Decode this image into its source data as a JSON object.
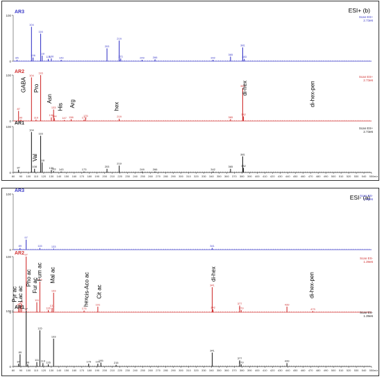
{
  "colors": {
    "AR3": "#3a3ac8",
    "AR2": "#d03030",
    "AR1": "#222222",
    "axis": "#444444",
    "grid": "#999999"
  },
  "chart_data": [
    {
      "type": "line",
      "title": "ESI+ (b)",
      "xlim": [
        80,
        550
      ],
      "x_ticks": [
        80,
        90,
        100,
        110,
        120,
        130,
        140,
        150,
        160,
        170,
        180,
        190,
        200,
        210,
        220,
        230,
        240,
        250,
        260,
        270,
        280,
        290,
        300,
        310,
        320,
        330,
        340,
        350,
        360,
        370,
        380,
        390,
        400,
        410,
        420,
        430,
        440,
        450,
        460,
        470,
        480,
        490,
        500,
        510,
        520,
        530,
        540,
        550
      ],
      "x_unit": "m/z",
      "series": [
        {
          "name": "AR3",
          "scan": "Scan ES+",
          "intensity": "2.73e6",
          "y_ticks": [
            0,
            100
          ],
          "peaks": [
            {
              "mz": 85,
              "h": 3,
              "label": "85"
            },
            {
              "mz": 104,
              "h": 75,
              "label": "104"
            },
            {
              "mz": 106,
              "h": 8,
              "label": "106"
            },
            {
              "mz": 116,
              "h": 60,
              "label": "116"
            },
            {
              "mz": 118,
              "h": 12,
              "label": "118"
            },
            {
              "mz": 126,
              "h": 5,
              "label": "126"
            },
            {
              "mz": 130,
              "h": 6,
              "label": "130"
            },
            {
              "mz": 143,
              "h": 3,
              "label": "143"
            },
            {
              "mz": 203,
              "h": 28,
              "label": "203"
            },
            {
              "mz": 219,
              "h": 45,
              "label": "219"
            },
            {
              "mz": 221,
              "h": 6,
              "label": "221"
            },
            {
              "mz": 249,
              "h": 3,
              "label": "249"
            },
            {
              "mz": 266,
              "h": 4,
              "label": "266"
            },
            {
              "mz": 342,
              "h": 3,
              "label": "342"
            },
            {
              "mz": 365,
              "h": 10,
              "label": "365"
            },
            {
              "mz": 381,
              "h": 30,
              "label": "381"
            },
            {
              "mz": 383,
              "h": 5,
              "label": "383"
            }
          ]
        },
        {
          "name": "AR2",
          "scan": "Scan ES+",
          "intensity": "2.73e6",
          "y_ticks": [
            0,
            100
          ],
          "annotations": [
            "GABA",
            "Pro",
            "Asn",
            "His",
            "Arg",
            "hex",
            "di-hex",
            "di-hex-pen"
          ],
          "peaks": [
            {
              "mz": 87,
              "h": 22,
              "label": "87"
            },
            {
              "mz": 90,
              "h": 3,
              "label": "90"
            },
            {
              "mz": 104,
              "h": 95,
              "label": "104"
            },
            {
              "mz": 110,
              "h": 3,
              "label": "110"
            },
            {
              "mz": 116,
              "h": 100,
              "label": "116"
            },
            {
              "mz": 130,
              "h": 8,
              "label": "130"
            },
            {
              "mz": 133,
              "h": 25,
              "label": "133"
            },
            {
              "mz": 134,
              "h": 6,
              "label": "134"
            },
            {
              "mz": 147,
              "h": 2,
              "label": "147"
            },
            {
              "mz": 156,
              "h": 4,
              "label": "156"
            },
            {
              "mz": 173,
              "h": 3,
              "label": "173"
            },
            {
              "mz": 175,
              "h": 7,
              "label": "175"
            },
            {
              "mz": 219,
              "h": 5,
              "label": "219"
            },
            {
              "mz": 365,
              "h": 4,
              "label": "365"
            },
            {
              "mz": 381,
              "h": 72,
              "label": "381"
            },
            {
              "mz": 382,
              "h": 10,
              "label": "382"
            }
          ]
        },
        {
          "name": "AR1",
          "scan": "Scan ES+",
          "intensity": "2.73e6",
          "y_ticks": [
            0,
            100
          ],
          "annotations": [
            "Val"
          ],
          "peaks": [
            {
              "mz": 87,
              "h": 6,
              "label": "87"
            },
            {
              "mz": 104,
              "h": 88,
              "label": "104"
            },
            {
              "mz": 108,
              "h": 8,
              "label": "108"
            },
            {
              "mz": 116,
              "h": 80,
              "label": "116"
            },
            {
              "mz": 118,
              "h": 22,
              "label": "118"
            },
            {
              "mz": 130,
              "h": 5,
              "label": "130"
            },
            {
              "mz": 133,
              "h": 3,
              "label": "133"
            },
            {
              "mz": 143,
              "h": 2,
              "label": "143"
            },
            {
              "mz": 173,
              "h": 2,
              "label": "173"
            },
            {
              "mz": 203,
              "h": 8,
              "label": "203"
            },
            {
              "mz": 219,
              "h": 15,
              "label": "219"
            },
            {
              "mz": 249,
              "h": 2,
              "label": "249"
            },
            {
              "mz": 266,
              "h": 2,
              "label": "266"
            },
            {
              "mz": 342,
              "h": 2,
              "label": "342"
            },
            {
              "mz": 365,
              "h": 8,
              "label": "365"
            },
            {
              "mz": 381,
              "h": 35,
              "label": "381"
            },
            {
              "mz": 382,
              "h": 10,
              "label": "382"
            }
          ]
        }
      ]
    },
    {
      "type": "line",
      "title": "ESI- (a)",
      "xlim": [
        80,
        550
      ],
      "x_ticks": [
        80,
        90,
        100,
        110,
        120,
        130,
        140,
        150,
        160,
        170,
        180,
        190,
        200,
        210,
        220,
        230,
        240,
        250,
        260,
        270,
        280,
        290,
        300,
        310,
        320,
        330,
        340,
        350,
        360,
        370,
        380,
        390,
        400,
        410,
        420,
        430,
        440,
        450,
        460,
        470,
        480,
        490,
        500,
        510,
        520,
        530,
        540,
        550
      ],
      "x_unit": "m/z",
      "series": [
        {
          "name": "AR3",
          "scan": "Scan ES-",
          "intensity": "1.39e6",
          "y_ticks": [
            0,
            100
          ],
          "peaks": [
            {
              "mz": 89,
              "h": 3,
              "label": "89"
            },
            {
              "mz": 97,
              "h": 18,
              "label": "97"
            },
            {
              "mz": 115,
              "h": 3,
              "label": "115"
            },
            {
              "mz": 133,
              "h": 2,
              "label": "133"
            },
            {
              "mz": 341,
              "h": 3,
              "label": "341"
            }
          ]
        },
        {
          "name": "AR2",
          "scan": "Scan ES-",
          "intensity": "1.39e6",
          "y_ticks": [
            0,
            100
          ],
          "annotations": [
            "Pyr ac",
            "Lac ac",
            "Pho ac",
            "Fur ac",
            "Fum ac",
            "Mal ac",
            "cis-Aco ac",
            "hex",
            "Cit ac",
            "di-hex",
            "di-hex-pen"
          ],
          "peaks": [
            {
              "mz": 87,
              "h": 10,
              "label": "87"
            },
            {
              "mz": 89,
              "h": 12,
              "label": "89"
            },
            {
              "mz": 91,
              "h": 15,
              "label": "91"
            },
            {
              "mz": 97,
              "h": 100,
              "label": "97"
            },
            {
              "mz": 111,
              "h": 18,
              "label": "111"
            },
            {
              "mz": 115,
              "h": 55,
              "label": "115"
            },
            {
              "mz": 126,
              "h": 4,
              "label": "126"
            },
            {
              "mz": 131,
              "h": 8,
              "label": "131"
            },
            {
              "mz": 133,
              "h": 35,
              "label": "133"
            },
            {
              "mz": 173,
              "h": 3,
              "label": "173"
            },
            {
              "mz": 191,
              "h": 10,
              "label": "191"
            },
            {
              "mz": 341,
              "h": 45,
              "label": "341"
            },
            {
              "mz": 342,
              "h": 5,
              "label": "342"
            },
            {
              "mz": 377,
              "h": 12,
              "label": "377"
            },
            {
              "mz": 379,
              "h": 4,
              "label": "379"
            },
            {
              "mz": 439,
              "h": 10,
              "label": "439"
            },
            {
              "mz": 473,
              "h": 2,
              "label": "473"
            }
          ]
        },
        {
          "name": "AR1",
          "scan": "Scan ES-",
          "intensity": "1.39e6",
          "y_ticks": [
            0,
            100
          ],
          "peaks": [
            {
              "mz": 87,
              "h": 5,
              "label": "87"
            },
            {
              "mz": 89,
              "h": 22,
              "label": "89"
            },
            {
              "mz": 97,
              "h": 100,
              "label": "97"
            },
            {
              "mz": 99,
              "h": 4,
              "label": "99"
            },
            {
              "mz": 111,
              "h": 8,
              "label": "111"
            },
            {
              "mz": 115,
              "h": 65,
              "label": "115"
            },
            {
              "mz": 119,
              "h": 6,
              "label": "119"
            },
            {
              "mz": 126,
              "h": 4,
              "label": "126"
            },
            {
              "mz": 133,
              "h": 50,
              "label": "133"
            },
            {
              "mz": 179,
              "h": 5,
              "label": "179"
            },
            {
              "mz": 191,
              "h": 5,
              "label": "191"
            },
            {
              "mz": 195,
              "h": 7,
              "label": "195"
            },
            {
              "mz": 215,
              "h": 3,
              "label": "215"
            },
            {
              "mz": 341,
              "h": 25,
              "label": "341"
            },
            {
              "mz": 377,
              "h": 11,
              "label": "377"
            },
            {
              "mz": 379,
              "h": 4,
              "label": "379"
            },
            {
              "mz": 439,
              "h": 6,
              "label": "439"
            }
          ]
        }
      ]
    }
  ]
}
